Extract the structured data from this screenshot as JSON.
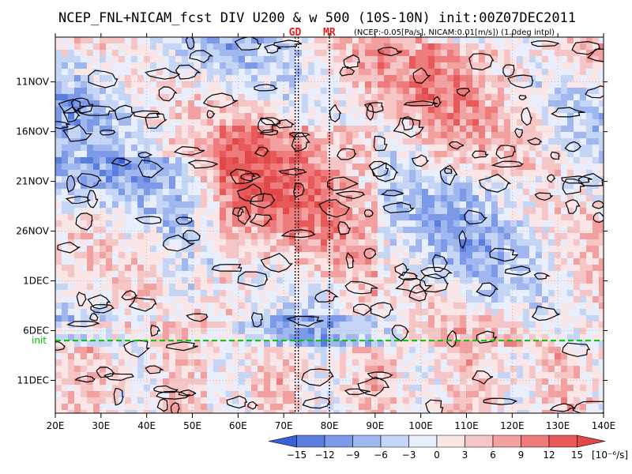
{
  "chart_data": {
    "type": "heatmap",
    "title": "NCEP_FNL+NICAM_fcst DIV U200 & w 500 (10S-10N) init:00Z07DEC2011",
    "subtitle": "(NCEP:-0.05[Pa/s], NICAM:0.01[m/s]) (1.0deg intpl)",
    "x_ticks": [
      "20E",
      "30E",
      "40E",
      "50E",
      "60E",
      "70E",
      "80E",
      "90E",
      "100E",
      "110E",
      "120E",
      "130E",
      "140E"
    ],
    "x_tick_values": [
      20,
      30,
      40,
      50,
      60,
      70,
      80,
      90,
      100,
      110,
      120,
      130,
      140
    ],
    "xlim": [
      20,
      140
    ],
    "y_ticks": [
      "11NOV",
      "16NOV",
      "21NOV",
      "26NOV",
      "1DEC",
      "6DEC",
      "11DEC"
    ],
    "y_tick_days": [
      11,
      16,
      21,
      26,
      31,
      36,
      41
    ],
    "ylim_days": [
      6.5,
      44.3
    ],
    "y_axis_direction": "time increases downward",
    "init_label": "init",
    "init_day": 37,
    "init_line_color": "#00c400",
    "vertical_lines": [
      {
        "label": "GD",
        "lon": 72.5
      },
      {
        "label": "",
        "lon": 73.2
      },
      {
        "label": "MR",
        "lon": 80
      }
    ],
    "marker_color": "#e0201e",
    "colorbar": {
      "levels": [
        -15,
        -12,
        -9,
        -6,
        -3,
        0,
        3,
        6,
        9,
        12,
        15
      ],
      "labels": [
        "−15",
        "−12",
        "−9",
        "−6",
        "−3",
        "0",
        "3",
        "6",
        "9",
        "12",
        "15"
      ],
      "unit": "[10⁻⁶/s]",
      "colors": [
        "#3a5fd5",
        "#5a7de0",
        "#7c9ae8",
        "#a0b8ef",
        "#c5d5f5",
        "#e8eefb",
        "#fae6e6",
        "#f6c6c6",
        "#f2a0a0",
        "#ee7c7c",
        "#e85a5a",
        "#e24848"
      ]
    },
    "shading_field": "DIV U200 (10^-6/s)",
    "contour_field": "w 500",
    "grid": "dotted at tick positions",
    "legend": "colorbar bottom"
  }
}
